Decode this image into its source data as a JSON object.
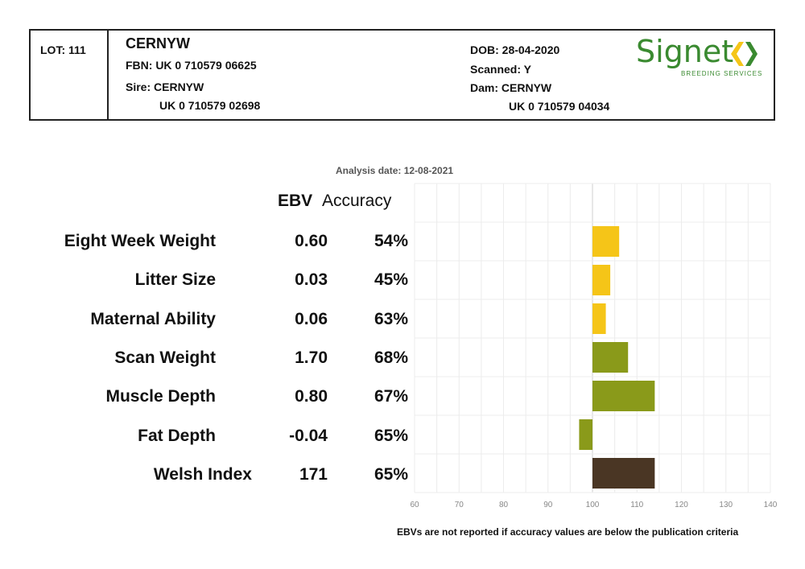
{
  "header": {
    "lot": "LOT: 111",
    "name": "CERNYW",
    "fbn": "FBN: UK 0 710579 06625",
    "sire": "Sire: CERNYW",
    "sire_id": "UK 0 710579 02698",
    "dob": "DOB: 28-04-2020",
    "scanned": "Scanned: Y",
    "dam": "Dam: CERNYW",
    "dam_id": "UK 0 710579 04034"
  },
  "logo": {
    "word": "Signet",
    "sub": "BREEDING SERVICES",
    "color": "#3a8a30",
    "mark_colors": [
      "#f5c518",
      "#3a8a30"
    ]
  },
  "analysis_date": "Analysis date: 12-08-2021",
  "columns": {
    "ebv": "EBV",
    "accuracy": "Accuracy"
  },
  "footnote": "EBVs are not reported if accuracy values are below the publication criteria",
  "chart_data": {
    "type": "bar",
    "orientation": "horizontal",
    "categories": [
      "Eight Week Weight",
      "Litter Size",
      "Maternal Ability",
      "Scan Weight",
      "Muscle Depth",
      "Fat Depth",
      "Welsh Index"
    ],
    "ebv_labels": [
      "0.60",
      "0.03",
      "0.06",
      "1.70",
      "0.80",
      "-0.04",
      "171"
    ],
    "accuracy_labels": [
      "54%",
      "45%",
      "63%",
      "68%",
      "67%",
      "65%",
      "65%"
    ],
    "values": [
      106,
      104,
      103,
      108,
      114,
      97,
      114
    ],
    "baseline": 100,
    "xlim": [
      60,
      140
    ],
    "xticks": [
      60,
      70,
      80,
      90,
      100,
      110,
      120,
      130,
      140
    ],
    "xtick_labels": [
      "60",
      "70",
      "80",
      "90",
      "100",
      "110",
      "120",
      "130",
      "140"
    ],
    "bar_colors": [
      "#f5c518",
      "#f5c518",
      "#f5c518",
      "#8a9a1a",
      "#8a9a1a",
      "#8a9a1a",
      "#4a3624"
    ],
    "grid": true
  }
}
